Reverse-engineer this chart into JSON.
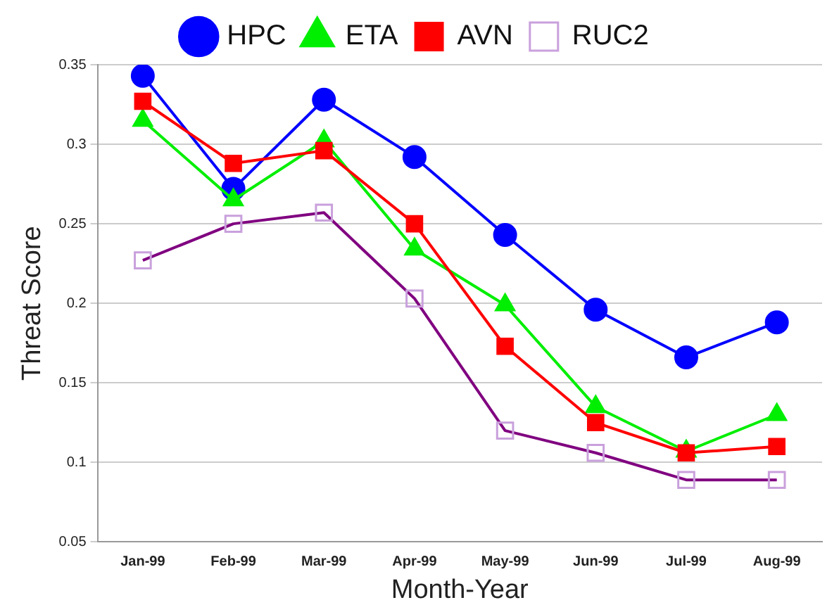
{
  "chart_data": {
    "type": "line",
    "xlabel": "Month-Year",
    "ylabel": "Threat Score",
    "categories": [
      "Jan-99",
      "Feb-99",
      "Mar-99",
      "Apr-99",
      "May-99",
      "Jun-99",
      "Jul-99",
      "Aug-99"
    ],
    "series": [
      {
        "name": "HPC",
        "color": "#0000ff",
        "marker": "circle",
        "values": [
          0.343,
          0.272,
          0.328,
          0.292,
          0.243,
          0.196,
          0.166,
          0.188
        ]
      },
      {
        "name": "ETA",
        "color": "#00ee00",
        "marker": "triangle",
        "values": [
          0.315,
          0.265,
          0.302,
          0.234,
          0.199,
          0.135,
          0.107,
          0.13
        ]
      },
      {
        "name": "AVN",
        "color": "#ff0000",
        "marker": "square",
        "values": [
          0.327,
          0.288,
          0.296,
          0.25,
          0.173,
          0.125,
          0.106,
          0.11
        ]
      },
      {
        "name": "RUC2",
        "color": "#800080",
        "marker": "square",
        "values": [
          0.227,
          0.25,
          0.257,
          0.203,
          0.12,
          0.106,
          0.089,
          0.089
        ]
      }
    ],
    "ylim": [
      0.05,
      0.35
    ],
    "yticks": [
      {
        "value": 0.05,
        "label": "0.05"
      },
      0.1,
      0.15,
      0.2,
      0.25,
      0.3,
      0.35
    ],
    "grid": "y",
    "legend": "top"
  }
}
